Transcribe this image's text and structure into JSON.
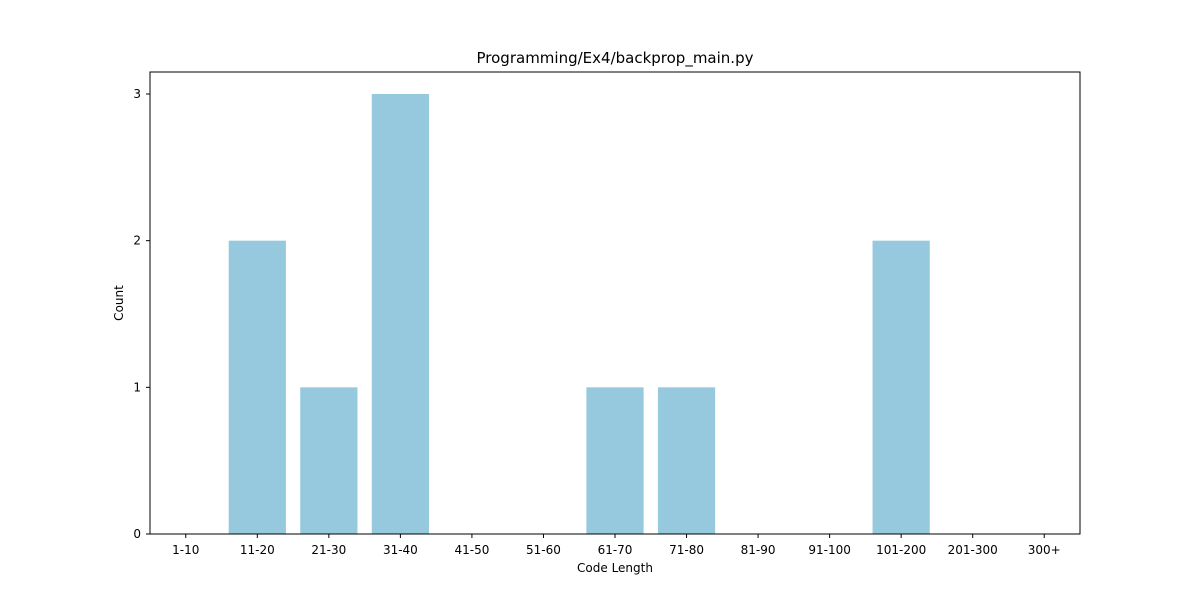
{
  "chart_data": {
    "type": "bar",
    "title": "Programming/Ex4/backprop_main.py",
    "xlabel": "Code Length",
    "ylabel": "Count",
    "categories": [
      "1-10",
      "11-20",
      "21-30",
      "31-40",
      "41-50",
      "51-60",
      "61-70",
      "71-80",
      "81-90",
      "91-100",
      "101-200",
      "201-300",
      "300+"
    ],
    "values": [
      0,
      2,
      1,
      3,
      0,
      0,
      1,
      1,
      0,
      0,
      2,
      0,
      0
    ],
    "ylim": [
      0,
      3.15
    ],
    "yticks": [
      0,
      1,
      2,
      3
    ],
    "bar_color": "#96c9de",
    "grid": false,
    "legend": "none"
  }
}
